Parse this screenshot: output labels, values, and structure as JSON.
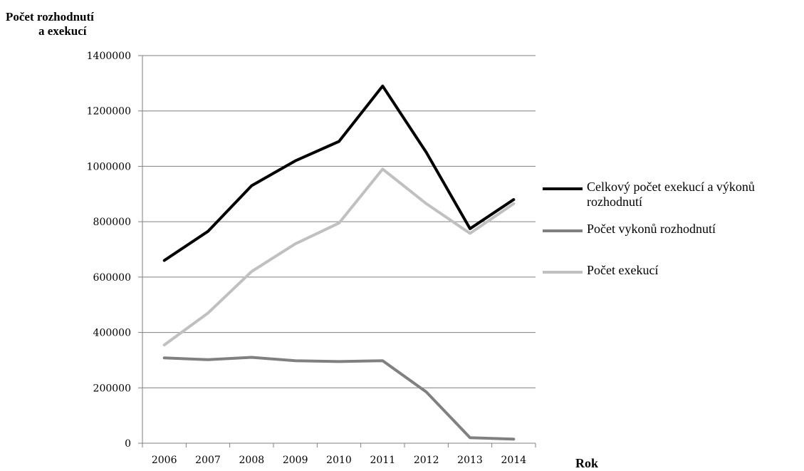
{
  "chart_data": {
    "type": "line",
    "xlabel": "Rok",
    "ylabel": [
      "Počet rozhodnutí",
      "a exekucí"
    ],
    "categories": [
      "2006",
      "2007",
      "2008",
      "2009",
      "2010",
      "2011",
      "2012",
      "2013",
      "2014"
    ],
    "ylim": [
      0,
      1400000
    ],
    "yticks": [
      "0",
      "200000",
      "400000",
      "600000",
      "800000",
      "1000000",
      "1200000",
      "1400000"
    ],
    "grid": true,
    "legend_position": "right",
    "series": [
      {
        "name": "Celkový počet exekucí a výkonů rozhodnutí",
        "color": "#000000",
        "values": [
          660000,
          765000,
          930000,
          1020000,
          1090000,
          1290000,
          1050000,
          775000,
          880000
        ]
      },
      {
        "name": "Počet vykonů rozhodnutí",
        "color": "#808080",
        "values": [
          308000,
          302000,
          310000,
          298000,
          295000,
          298000,
          185000,
          20000,
          15000
        ]
      },
      {
        "name": "Počet exekucí",
        "color": "#c0c0c0",
        "values": [
          355000,
          470000,
          620000,
          720000,
          795000,
          990000,
          865000,
          758000,
          865000
        ]
      }
    ]
  }
}
